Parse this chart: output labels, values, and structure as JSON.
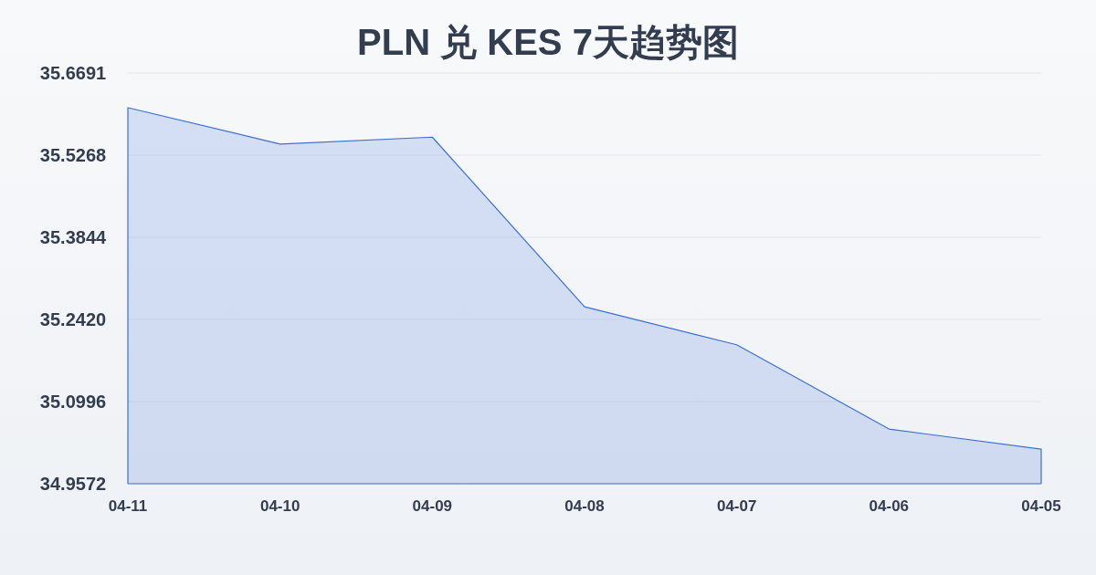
{
  "chart_data": {
    "type": "area",
    "title": "PLN 兑 KES 7天趋势图",
    "categories": [
      "04-11",
      "04-10",
      "04-09",
      "04-08",
      "04-07",
      "04-06",
      "04-05"
    ],
    "series": [
      {
        "color": "#3b6fd6",
        "values": [
          35.609,
          35.546,
          35.558,
          35.264,
          35.198,
          35.052,
          35.017
        ]
      }
    ],
    "ylim": [
      34.9572,
      35.6691
    ],
    "yticks": [
      {
        "value": 34.9572,
        "label": "34.9572"
      },
      {
        "value": 35.0996,
        "label": "35.0996"
      },
      {
        "value": 35.242,
        "label": "35.2420"
      },
      {
        "value": 35.3844,
        "label": "35.3844"
      },
      {
        "value": 35.5268,
        "label": "35.5268"
      },
      35.6691
    ],
    "grid": "y"
  }
}
